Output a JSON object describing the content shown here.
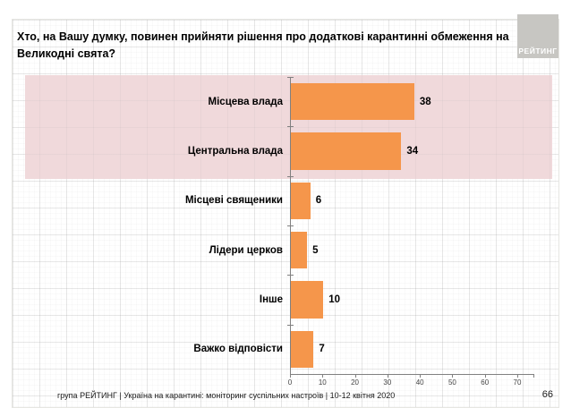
{
  "slide": {
    "title_line1": "Хто, на Вашу думку, повинен прийняти рішення про додаткові карантинні обмеження  на",
    "title_line2": "Великодні свята?",
    "footer": "група РЕЙТИНГ | Україна на карантині: моніторинг суспільних настроїв  | 10-12 квітня  2020",
    "page_number": "66",
    "logo_text": "РЕЙТИНГ"
  },
  "colors": {
    "bar": "#F5964B",
    "highlight_band": "#F0D9DB",
    "axis": "#808080",
    "logo_bg": "#C7C6C2"
  },
  "chart_data": {
    "type": "bar",
    "orientation": "horizontal",
    "title": "Хто, на Вашу думку, повинен прийняти рішення про додаткові карантинні обмеження на Великодні свята?",
    "categories": [
      "Місцева влада",
      "Центральна влада",
      "Місцеві священики",
      "Лідери церков",
      "Інше",
      "Важко відповісти"
    ],
    "values": [
      38,
      34,
      6,
      5,
      10,
      7
    ],
    "highlighted_rows": [
      0,
      1
    ],
    "xticks": [
      0,
      10,
      20,
      30,
      40,
      50,
      60,
      70
    ],
    "xlim": [
      0,
      75
    ],
    "grid": false,
    "legend": null,
    "value_labels_shown": true
  }
}
